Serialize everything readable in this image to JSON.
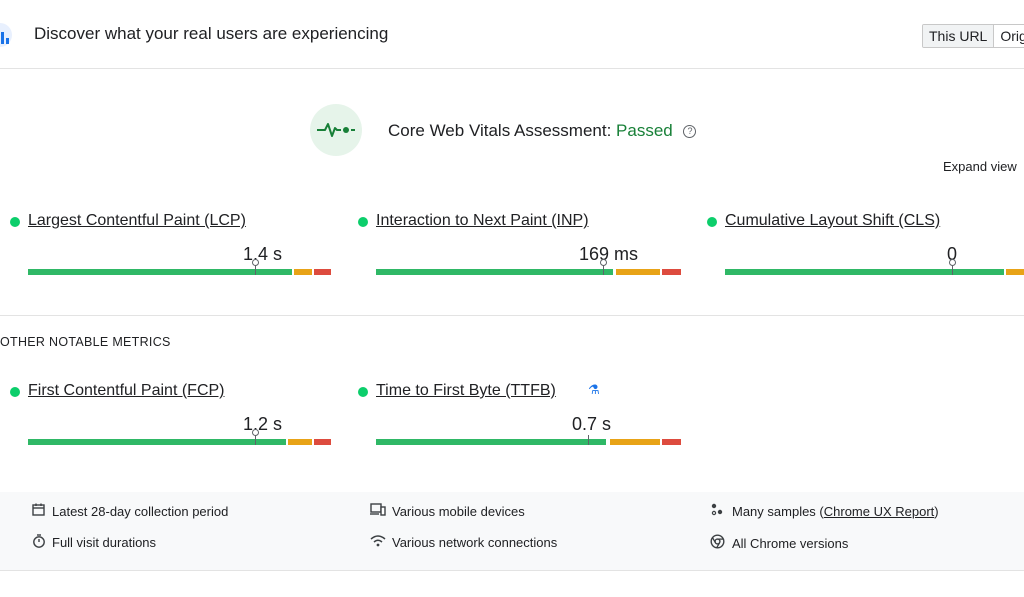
{
  "header": {
    "title": "Discover what your real users are experiencing",
    "tabs": [
      "This URL",
      "Origi"
    ]
  },
  "assessment": {
    "label": "Core Web Vitals Assessment:",
    "status": "Passed",
    "help_icon": "help-circle-icon",
    "expand_label": "Expand view"
  },
  "core_metrics": [
    {
      "name": "Largest Contentful Paint (LCP)",
      "value": "1.4 s",
      "status": "good"
    },
    {
      "name": "Interaction to Next Paint (INP)",
      "value": "169 ms",
      "status": "good"
    },
    {
      "name": "Cumulative Layout Shift (CLS)",
      "value": "0",
      "status": "good"
    }
  ],
  "other_heading": "OTHER NOTABLE METRICS",
  "other_metrics": [
    {
      "name": "First Contentful Paint (FCP)",
      "value": "1.2 s",
      "status": "good"
    },
    {
      "name": "Time to First Byte (TTFB)",
      "value": "0.7 s",
      "status": "good",
      "badge_icon": "flask-icon"
    }
  ],
  "footer": {
    "items": [
      {
        "icon": "calendar-icon",
        "text": "Latest 28-day collection period"
      },
      {
        "icon": "devices-icon",
        "text": "Various mobile devices"
      },
      {
        "icon": "samples-icon",
        "prefix": "Many samples (",
        "link": "Chrome UX Report",
        "suffix": ")"
      },
      {
        "icon": "timer-icon",
        "text": "Full visit durations"
      },
      {
        "icon": "wifi-icon",
        "text": "Various network connections"
      },
      {
        "icon": "chrome-icon",
        "text": "All Chrome versions"
      }
    ]
  },
  "colors": {
    "good": "#0cce6b",
    "passed": "#188038",
    "needs_improvement": "#ffa400",
    "poor": "#ff4e42"
  }
}
